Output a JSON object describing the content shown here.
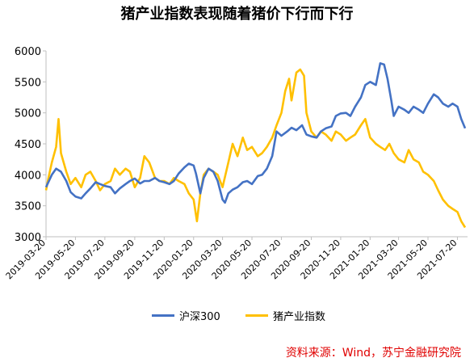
{
  "chart_data": {
    "type": "line",
    "title": "猪产业指数表现随着猪价下行而下行",
    "xlabel": "",
    "ylabel": "",
    "ylim": [
      3000,
      6000
    ],
    "yticks": [
      3000,
      3500,
      4000,
      4500,
      5000,
      5500,
      6000
    ],
    "x_tick_labels": [
      "2019-03-20",
      "2019-05-20",
      "2019-07-20",
      "2019-09-20",
      "2019-11-20",
      "2020-01-20",
      "2020-03-20",
      "2020-05-20",
      "2020-07-20",
      "2020-09-20",
      "2020-11-20",
      "2021-01-20",
      "2021-03-20",
      "2021-05-20",
      "2021-07-20"
    ],
    "x_range": [
      "2019-03-20",
      "2021-08-10"
    ],
    "grid": false,
    "legend_position": "bottom",
    "series": [
      {
        "name": "沪深300",
        "color": "#4472C4",
        "points": [
          [
            "2019-03-20",
            3800
          ],
          [
            "2019-04-01",
            4000
          ],
          [
            "2019-04-10",
            4100
          ],
          [
            "2019-04-20",
            4050
          ],
          [
            "2019-05-01",
            3900
          ],
          [
            "2019-05-10",
            3720
          ],
          [
            "2019-05-20",
            3650
          ],
          [
            "2019-06-01",
            3620
          ],
          [
            "2019-06-10",
            3700
          ],
          [
            "2019-06-20",
            3780
          ],
          [
            "2019-07-01",
            3880
          ],
          [
            "2019-07-10",
            3850
          ],
          [
            "2019-07-20",
            3820
          ],
          [
            "2019-08-01",
            3800
          ],
          [
            "2019-08-10",
            3700
          ],
          [
            "2019-08-20",
            3780
          ],
          [
            "2019-09-01",
            3850
          ],
          [
            "2019-09-10",
            3900
          ],
          [
            "2019-09-20",
            3940
          ],
          [
            "2019-10-01",
            3860
          ],
          [
            "2019-10-10",
            3900
          ],
          [
            "2019-10-20",
            3900
          ],
          [
            "2019-11-01",
            3950
          ],
          [
            "2019-11-10",
            3900
          ],
          [
            "2019-11-20",
            3880
          ],
          [
            "2019-12-01",
            3850
          ],
          [
            "2019-12-10",
            3900
          ],
          [
            "2019-12-20",
            4020
          ],
          [
            "2020-01-01",
            4120
          ],
          [
            "2020-01-10",
            4180
          ],
          [
            "2020-01-20",
            4150
          ],
          [
            "2020-01-25",
            4020
          ],
          [
            "2020-02-03",
            3700
          ],
          [
            "2020-02-10",
            3950
          ],
          [
            "2020-02-20",
            4100
          ],
          [
            "2020-03-01",
            4050
          ],
          [
            "2020-03-10",
            3900
          ],
          [
            "2020-03-20",
            3600
          ],
          [
            "2020-03-25",
            3550
          ],
          [
            "2020-04-01",
            3700
          ],
          [
            "2020-04-10",
            3760
          ],
          [
            "2020-04-20",
            3800
          ],
          [
            "2020-05-01",
            3880
          ],
          [
            "2020-05-10",
            3900
          ],
          [
            "2020-05-20",
            3850
          ],
          [
            "2020-06-01",
            3980
          ],
          [
            "2020-06-10",
            4000
          ],
          [
            "2020-06-20",
            4100
          ],
          [
            "2020-07-01",
            4300
          ],
          [
            "2020-07-10",
            4700
          ],
          [
            "2020-07-20",
            4630
          ],
          [
            "2020-08-01",
            4700
          ],
          [
            "2020-08-10",
            4760
          ],
          [
            "2020-08-20",
            4720
          ],
          [
            "2020-09-01",
            4800
          ],
          [
            "2020-09-10",
            4650
          ],
          [
            "2020-09-20",
            4620
          ],
          [
            "2020-10-01",
            4600
          ],
          [
            "2020-10-10",
            4700
          ],
          [
            "2020-10-20",
            4750
          ],
          [
            "2020-11-01",
            4780
          ],
          [
            "2020-11-10",
            4950
          ],
          [
            "2020-11-20",
            4990
          ],
          [
            "2020-12-01",
            5000
          ],
          [
            "2020-12-10",
            4950
          ],
          [
            "2020-12-20",
            5100
          ],
          [
            "2021-01-01",
            5250
          ],
          [
            "2021-01-10",
            5450
          ],
          [
            "2021-01-20",
            5500
          ],
          [
            "2021-02-01",
            5450
          ],
          [
            "2021-02-10",
            5800
          ],
          [
            "2021-02-18",
            5780
          ],
          [
            "2021-02-25",
            5550
          ],
          [
            "2021-03-05",
            5200
          ],
          [
            "2021-03-10",
            4950
          ],
          [
            "2021-03-20",
            5100
          ],
          [
            "2021-04-01",
            5050
          ],
          [
            "2021-04-10",
            5000
          ],
          [
            "2021-04-20",
            5100
          ],
          [
            "2021-05-01",
            5050
          ],
          [
            "2021-05-10",
            5000
          ],
          [
            "2021-05-20",
            5150
          ],
          [
            "2021-06-01",
            5300
          ],
          [
            "2021-06-10",
            5250
          ],
          [
            "2021-06-20",
            5150
          ],
          [
            "2021-07-01",
            5100
          ],
          [
            "2021-07-10",
            5150
          ],
          [
            "2021-07-20",
            5100
          ],
          [
            "2021-07-28",
            4900
          ],
          [
            "2021-08-05",
            4750
          ]
        ]
      },
      {
        "name": "猪产业指数",
        "color": "#FFC000",
        "points": [
          [
            "2019-03-20",
            3750
          ],
          [
            "2019-03-25",
            3950
          ],
          [
            "2019-04-01",
            4200
          ],
          [
            "2019-04-10",
            4450
          ],
          [
            "2019-04-15",
            4900
          ],
          [
            "2019-04-20",
            4350
          ],
          [
            "2019-05-01",
            4050
          ],
          [
            "2019-05-10",
            3850
          ],
          [
            "2019-05-20",
            3950
          ],
          [
            "2019-06-01",
            3800
          ],
          [
            "2019-06-10",
            4000
          ],
          [
            "2019-06-20",
            4050
          ],
          [
            "2019-07-01",
            3900
          ],
          [
            "2019-07-10",
            3750
          ],
          [
            "2019-07-20",
            3850
          ],
          [
            "2019-08-01",
            3900
          ],
          [
            "2019-08-10",
            4100
          ],
          [
            "2019-08-20",
            4000
          ],
          [
            "2019-09-01",
            4100
          ],
          [
            "2019-09-10",
            4050
          ],
          [
            "2019-09-20",
            3800
          ],
          [
            "2019-10-01",
            3950
          ],
          [
            "2019-10-10",
            4300
          ],
          [
            "2019-10-20",
            4200
          ],
          [
            "2019-11-01",
            3950
          ],
          [
            "2019-11-10",
            3900
          ],
          [
            "2019-11-20",
            3900
          ],
          [
            "2019-12-01",
            3850
          ],
          [
            "2019-12-10",
            3950
          ],
          [
            "2019-12-20",
            3900
          ],
          [
            "2020-01-01",
            3850
          ],
          [
            "2020-01-10",
            3700
          ],
          [
            "2020-01-20",
            3600
          ],
          [
            "2020-01-27",
            3250
          ],
          [
            "2020-02-03",
            3700
          ],
          [
            "2020-02-10",
            4000
          ],
          [
            "2020-02-20",
            4100
          ],
          [
            "2020-03-01",
            4050
          ],
          [
            "2020-03-10",
            4000
          ],
          [
            "2020-03-20",
            3800
          ],
          [
            "2020-04-01",
            4200
          ],
          [
            "2020-04-10",
            4500
          ],
          [
            "2020-04-20",
            4300
          ],
          [
            "2020-05-01",
            4600
          ],
          [
            "2020-05-10",
            4400
          ],
          [
            "2020-05-20",
            4450
          ],
          [
            "2020-06-01",
            4300
          ],
          [
            "2020-06-10",
            4350
          ],
          [
            "2020-06-20",
            4450
          ],
          [
            "2020-07-01",
            4600
          ],
          [
            "2020-07-10",
            4800
          ],
          [
            "2020-07-20",
            5000
          ],
          [
            "2020-07-28",
            5350
          ],
          [
            "2020-08-05",
            5550
          ],
          [
            "2020-08-10",
            5200
          ],
          [
            "2020-08-20",
            5650
          ],
          [
            "2020-08-28",
            5700
          ],
          [
            "2020-09-05",
            5600
          ],
          [
            "2020-09-10",
            5000
          ],
          [
            "2020-09-20",
            4700
          ],
          [
            "2020-10-01",
            4600
          ],
          [
            "2020-10-10",
            4700
          ],
          [
            "2020-10-20",
            4650
          ],
          [
            "2020-11-01",
            4550
          ],
          [
            "2020-11-10",
            4700
          ],
          [
            "2020-11-20",
            4650
          ],
          [
            "2020-12-01",
            4550
          ],
          [
            "2020-12-10",
            4600
          ],
          [
            "2020-12-20",
            4650
          ],
          [
            "2021-01-01",
            4800
          ],
          [
            "2021-01-10",
            4900
          ],
          [
            "2021-01-20",
            4600
          ],
          [
            "2021-02-01",
            4500
          ],
          [
            "2021-02-10",
            4450
          ],
          [
            "2021-02-20",
            4400
          ],
          [
            "2021-03-01",
            4500
          ],
          [
            "2021-03-10",
            4350
          ],
          [
            "2021-03-20",
            4250
          ],
          [
            "2021-04-01",
            4200
          ],
          [
            "2021-04-10",
            4400
          ],
          [
            "2021-04-20",
            4250
          ],
          [
            "2021-05-01",
            4200
          ],
          [
            "2021-05-10",
            4050
          ],
          [
            "2021-05-20",
            4000
          ],
          [
            "2021-06-01",
            3900
          ],
          [
            "2021-06-10",
            3750
          ],
          [
            "2021-06-20",
            3600
          ],
          [
            "2021-07-01",
            3500
          ],
          [
            "2021-07-10",
            3450
          ],
          [
            "2021-07-20",
            3400
          ],
          [
            "2021-07-28",
            3250
          ],
          [
            "2021-08-05",
            3150
          ]
        ]
      }
    ]
  },
  "source_note": "资料来源：Wind，苏宁金融研究院"
}
